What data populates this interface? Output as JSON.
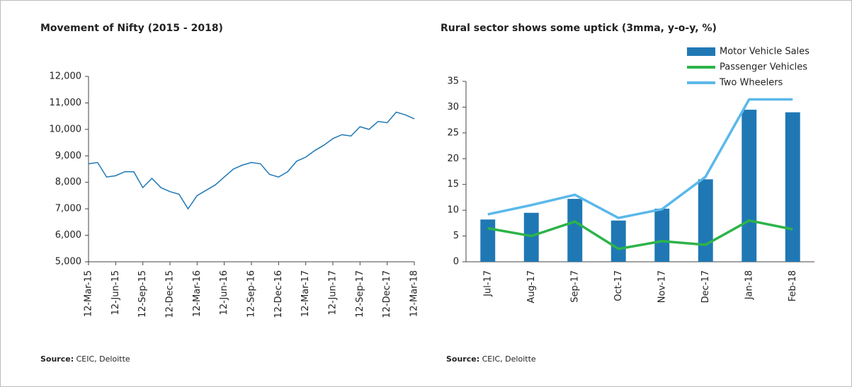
{
  "chart_data": [
    {
      "type": "line",
      "title": "Movement of Nifty (2015 - 2018)",
      "source_label": "Source:",
      "source_text": "CEIC, Deloitte",
      "x": [
        "12-Mar-15",
        "12-Apr-15",
        "12-May-15",
        "12-Jun-15",
        "12-Jul-15",
        "12-Aug-15",
        "12-Sep-15",
        "12-Oct-15",
        "12-Nov-15",
        "12-Dec-15",
        "12-Jan-16",
        "12-Feb-16",
        "12-Mar-16",
        "12-Apr-16",
        "12-May-16",
        "12-Jun-16",
        "12-Jul-16",
        "12-Aug-16",
        "12-Sep-16",
        "12-Oct-16",
        "12-Nov-16",
        "12-Dec-16",
        "12-Jan-17",
        "12-Feb-17",
        "12-Mar-17",
        "12-Apr-17",
        "12-May-17",
        "12-Jun-17",
        "12-Jul-17",
        "12-Aug-17",
        "12-Sep-17",
        "12-Oct-17",
        "12-Nov-17",
        "12-Dec-17",
        "12-Jan-18",
        "12-Feb-18",
        "12-Mar-18"
      ],
      "series": [
        {
          "color": "#1f78b4",
          "values": [
            8700,
            8750,
            8200,
            8250,
            8400,
            8400,
            7800,
            8150,
            7800,
            7650,
            7550,
            7000,
            7500,
            7700,
            7900,
            8200,
            8500,
            8650,
            8750,
            8700,
            8300,
            8200,
            8400,
            8800,
            8950,
            9200,
            9400,
            9650,
            9800,
            9750,
            10100,
            10000,
            10300,
            10250,
            10650,
            10550,
            10400
          ]
        }
      ],
      "xticks": [
        "12-Mar-15",
        "12-Jun-15",
        "12-Sep-15",
        "12-Dec-15",
        "12-Mar-16",
        "12-Jun-16",
        "12-Sep-16",
        "12-Dec-16",
        "12-Mar-17",
        "12-Jun-17",
        "12-Sep-17",
        "12-Dec-17",
        "12-Mar-18"
      ],
      "ylim": [
        5000,
        12000
      ],
      "yticks": [
        {
          "value": 5000,
          "label": "5,000"
        },
        {
          "value": 6000,
          "label": "6,000"
        },
        {
          "value": 7000,
          "label": "7,000"
        },
        {
          "value": 8000,
          "label": "8,000"
        },
        {
          "value": 9000,
          "label": "9,000"
        },
        {
          "value": 10000,
          "label": "10,000"
        },
        {
          "value": 11000,
          "label": "11,000"
        },
        {
          "value": 12000,
          "label": "12,000"
        }
      ],
      "grid": false
    },
    {
      "type": "bar",
      "title": "Rural sector shows some uptick (3mma, y-o-y, %)",
      "source_label": "Source:",
      "source_text": "CEIC, Deloitte",
      "categories": [
        "Jul-17",
        "Aug-17",
        "Sep-17",
        "Oct-17",
        "Nov-17",
        "Dec-17",
        "Jan-18",
        "Feb-18"
      ],
      "series": [
        {
          "name": "Motor Vehicle Sales",
          "type": "bar",
          "color": "#1f78b4",
          "values": [
            8.2,
            9.5,
            12.2,
            8,
            10.3,
            16,
            29.5,
            29
          ]
        },
        {
          "name": "Passenger Vehicles",
          "type": "line",
          "color": "#2db34a",
          "values": [
            6.5,
            5,
            7.8,
            2.5,
            4,
            3.3,
            8,
            6.3
          ]
        },
        {
          "name": "Two Wheelers",
          "type": "line",
          "color": "#5bb8ea",
          "values": [
            9.2,
            11,
            13,
            8.5,
            10.2,
            16.5,
            31.5,
            31.5
          ]
        }
      ],
      "ylim": [
        0,
        35
      ],
      "yticks": [
        0,
        5,
        10,
        15,
        20,
        25,
        30,
        35
      ],
      "legend": "top-right",
      "grid": false
    }
  ]
}
